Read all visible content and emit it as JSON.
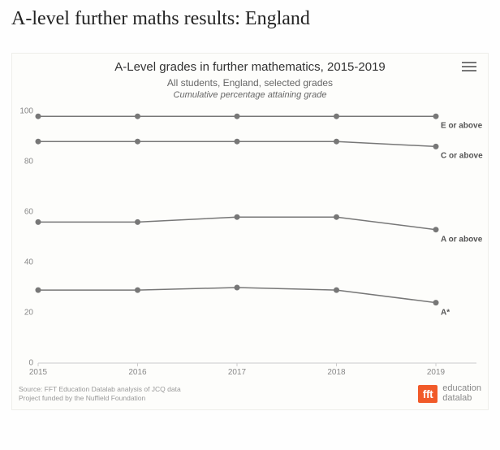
{
  "page_title": "A-level further maths results: England",
  "chart": {
    "type": "line",
    "title": "A-Level grades in further mathematics, 2015-2019",
    "subtitle": "All students, England, selected grades",
    "subtitle2": "Cumulative percentage attaining grade",
    "background_color": "#fdfdfb",
    "grid_color": "#e0e0e0",
    "axis_color": "#cccccc",
    "tick_label_color": "#888888",
    "series_label_color": "#555555",
    "title_fontsize": 15,
    "subtitle_fontsize": 12,
    "tick_fontsize": 10,
    "ylim": [
      0,
      100
    ],
    "yticks": [
      0,
      20,
      40,
      60,
      80,
      100
    ],
    "xticks": [
      2015,
      2016,
      2017,
      2018,
      2019
    ],
    "line_color": "#777777",
    "line_width": 1.5,
    "marker_radius": 3.5,
    "series": [
      {
        "name": "E or above",
        "label": "E or above",
        "values": [
          98,
          98,
          98,
          98,
          98
        ]
      },
      {
        "name": "C or above",
        "label": "C or above",
        "values": [
          88,
          88,
          88,
          88,
          86
        ]
      },
      {
        "name": "A or above",
        "label": "A or above",
        "values": [
          56,
          56,
          58,
          58,
          53
        ]
      },
      {
        "name": "A*",
        "label": "A*",
        "values": [
          29,
          29,
          30,
          29,
          24
        ]
      }
    ]
  },
  "source": {
    "line1": "Source: FFT Education Datalab analysis of JCQ data",
    "line2": "Project funded by the Nuffield Foundation"
  },
  "brand": {
    "box": "fft",
    "line1": "education",
    "line2": "datalab"
  }
}
